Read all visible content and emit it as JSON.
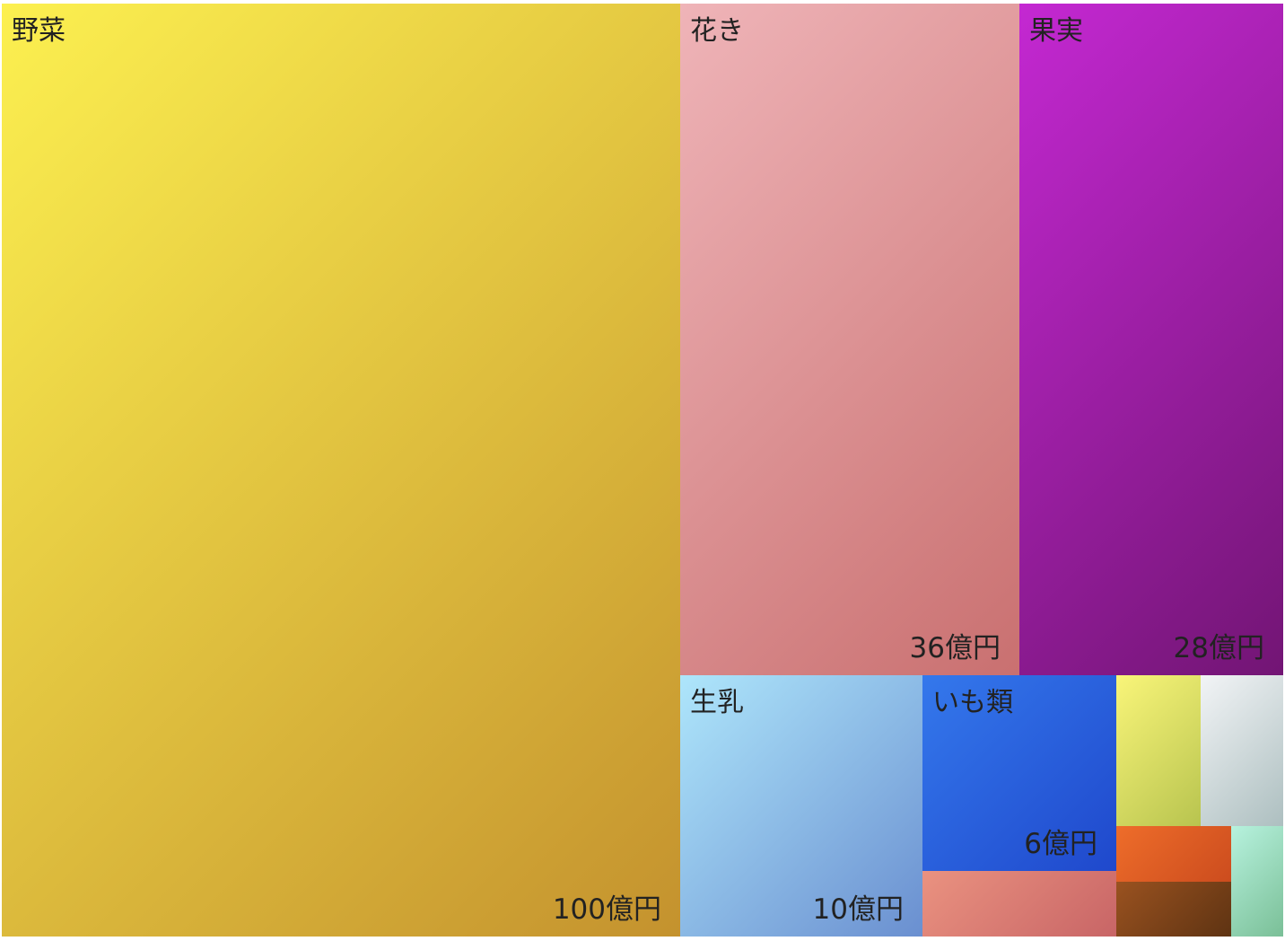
{
  "chart_data": {
    "type": "treemap",
    "title": "",
    "unit": "億円",
    "items": [
      {
        "id": "vegetables",
        "label": "野菜",
        "value": 100,
        "value_label": "100億円",
        "colors": [
          "#fcf050",
          "#c4922e"
        ]
      },
      {
        "id": "flowers",
        "label": "花き",
        "value": 36,
        "value_label": "36億円",
        "colors": [
          "#efb4b8",
          "#c97070"
        ]
      },
      {
        "id": "fruits",
        "label": "果実",
        "value": 28,
        "value_label": "28億円",
        "colors": [
          "#c428d2",
          "#721574"
        ]
      },
      {
        "id": "raw-milk",
        "label": "生乳",
        "value": 10,
        "value_label": "10億円",
        "colors": [
          "#aee6fb",
          "#6a8fd0"
        ]
      },
      {
        "id": "potatoes",
        "label": "いも類",
        "value": 6,
        "value_label": "6億円",
        "colors": [
          "#3478ec",
          "#1f48cc"
        ]
      },
      {
        "id": "unlabeled-1",
        "label": "",
        "value": 2.5,
        "value_label": "",
        "colors": [
          "#f9f579",
          "#b8c44f"
        ]
      },
      {
        "id": "unlabeled-2",
        "label": "",
        "value": 2.5,
        "value_label": "",
        "colors": [
          "#f2f4f6",
          "#adbfc0"
        ]
      },
      {
        "id": "unlabeled-3",
        "label": "",
        "value": 2.5,
        "value_label": "",
        "colors": [
          "#ea9280",
          "#c86566"
        ]
      },
      {
        "id": "unlabeled-4",
        "label": "",
        "value": 1.3,
        "value_label": "",
        "colors": [
          "#ee6d2a",
          "#cc4c1e"
        ]
      },
      {
        "id": "unlabeled-5",
        "label": "",
        "value": 1.2,
        "value_label": "",
        "colors": [
          "#9a5220",
          "#5e3312"
        ]
      },
      {
        "id": "unlabeled-6",
        "label": "",
        "value": 1.1,
        "value_label": "",
        "colors": [
          "#b7f2de",
          "#7abf97"
        ]
      }
    ]
  }
}
